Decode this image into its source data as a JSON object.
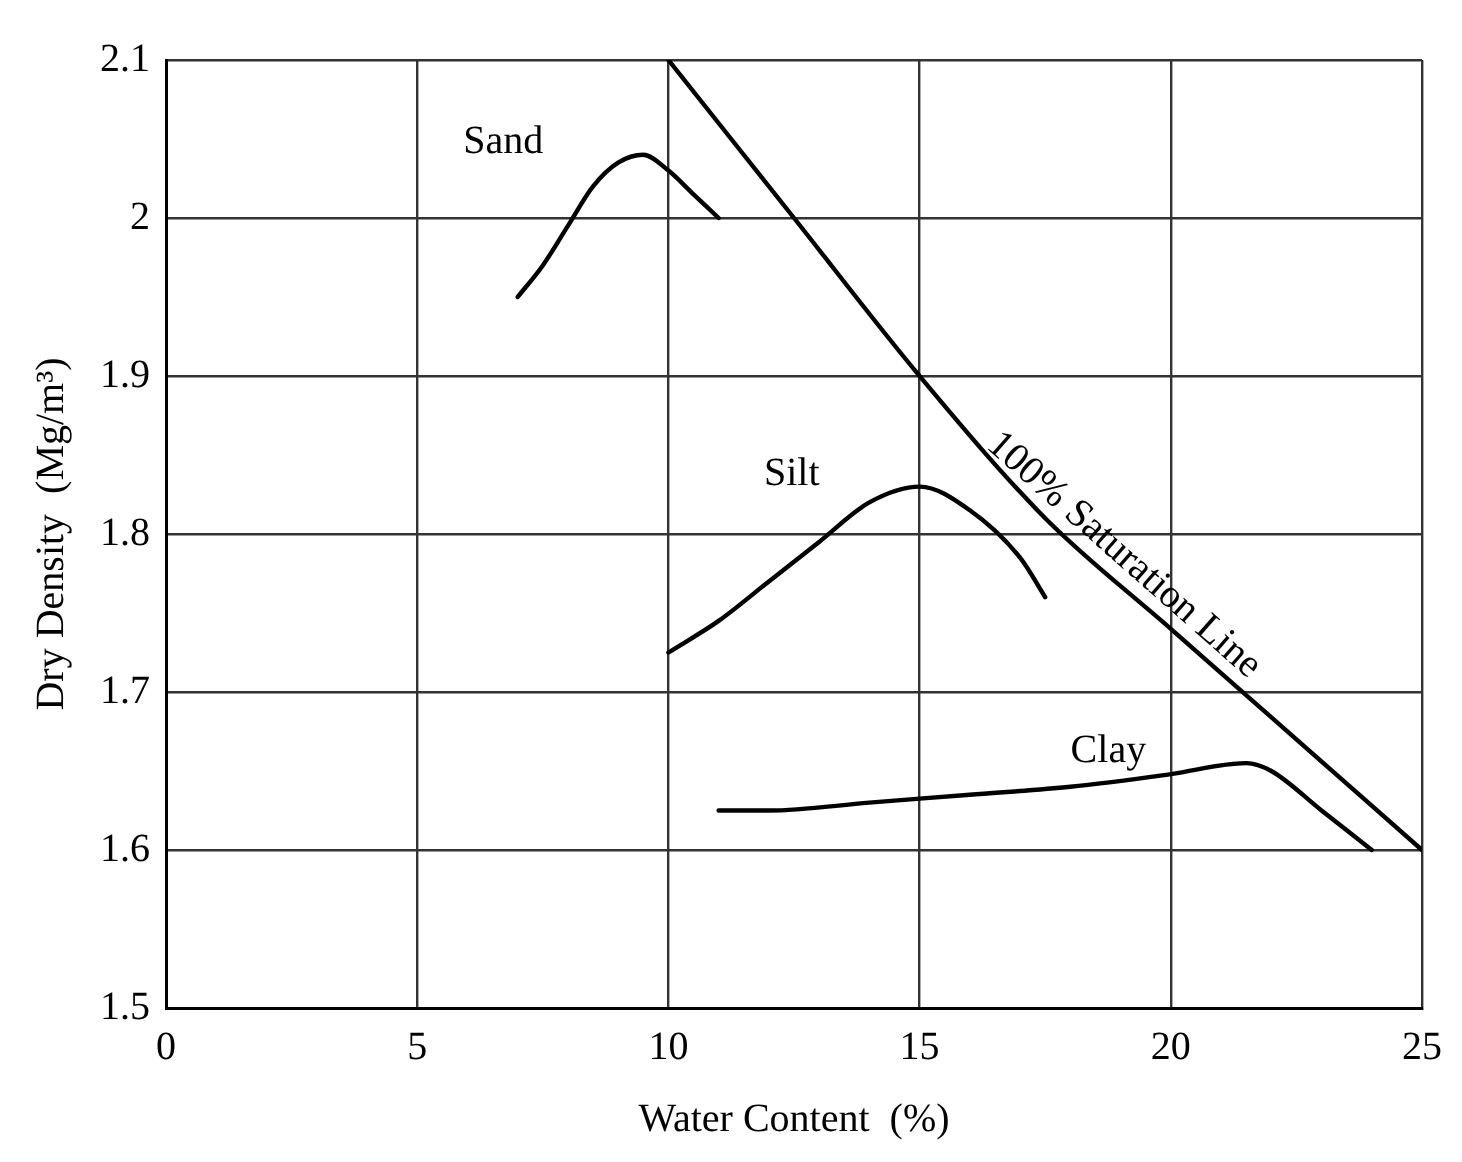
{
  "chart_data": {
    "type": "line",
    "xlabel": "Water Content  (%)",
    "ylabel": "Dry Density  (Mg/m³)",
    "xlim": [
      0,
      25
    ],
    "xticks": [
      0,
      5,
      10,
      15,
      20,
      25
    ],
    "ylim": [
      1.5,
      2.1
    ],
    "yticks": [
      1.5,
      1.6,
      1.7,
      1.8,
      1.9,
      2,
      2.1
    ],
    "grid": true,
    "legend": false,
    "marker": "none",
    "line_style": "solid",
    "series": [
      {
        "name": "Sand",
        "color": "#000000",
        "x": [
          7,
          7.5,
          8,
          8.5,
          9,
          9.5,
          10,
          10.5,
          11
        ],
        "values": [
          1.95,
          1.97,
          1.995,
          2.02,
          2.035,
          2.04,
          2.03,
          2.015,
          2.0
        ]
      },
      {
        "name": "Silt",
        "color": "#000000",
        "x": [
          10,
          11,
          12,
          13,
          14,
          15,
          16,
          17,
          17.5
        ],
        "values": [
          1.725,
          1.745,
          1.77,
          1.795,
          1.82,
          1.83,
          1.815,
          1.785,
          1.76
        ]
      },
      {
        "name": "Clay",
        "color": "#000000",
        "x": [
          11,
          12,
          14,
          16,
          18,
          20,
          21.5,
          22,
          23,
          24
        ],
        "values": [
          1.625,
          1.625,
          1.63,
          1.635,
          1.64,
          1.648,
          1.655,
          1.65,
          1.625,
          1.6
        ]
      },
      {
        "name": "100% Saturation Line",
        "color": "#000000",
        "x": [
          10,
          12.5,
          15,
          17.5,
          20,
          22.5,
          25
        ],
        "values": [
          2.1,
          2.0,
          1.9,
          1.81,
          1.74,
          1.67,
          1.6
        ]
      }
    ]
  }
}
